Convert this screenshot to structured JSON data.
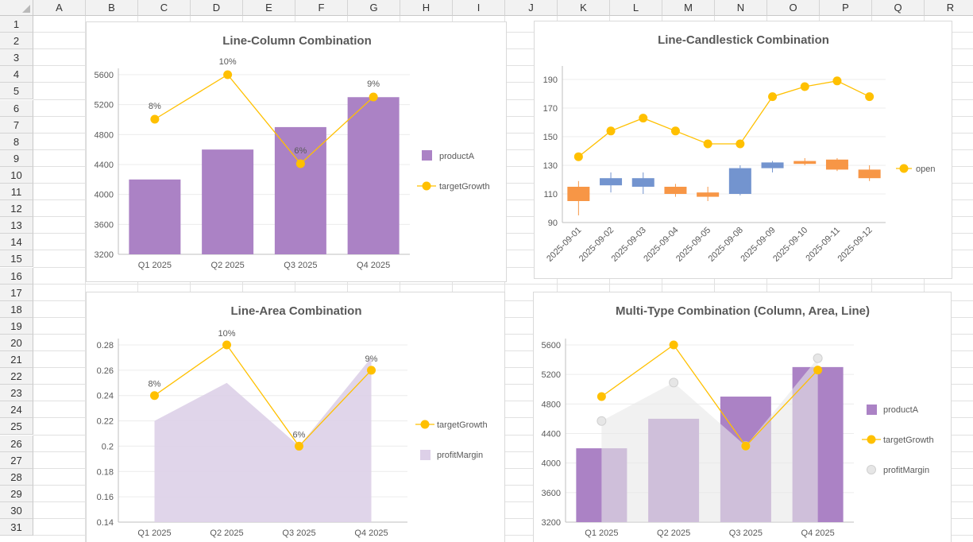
{
  "spreadsheet": {
    "columns": [
      "A",
      "B",
      "C",
      "D",
      "E",
      "F",
      "G",
      "H",
      "I",
      "J",
      "K",
      "L",
      "M",
      "N",
      "O",
      "P",
      "Q",
      "R"
    ],
    "rows": [
      "1",
      "2",
      "3",
      "4",
      "5",
      "6",
      "7",
      "8",
      "9",
      "10",
      "11",
      "12",
      "13",
      "14",
      "15",
      "16",
      "17",
      "18",
      "19",
      "20",
      "21",
      "22",
      "23",
      "24",
      "25",
      "26",
      "27",
      "28",
      "29",
      "30",
      "31"
    ]
  },
  "colors": {
    "productA": "#ab82c5",
    "targetGrowth": "#ffc000",
    "profitMargin_area": "#ddd0e8",
    "profitMargin_multi": "#e8e8e8",
    "candle_up": "#7394cf",
    "candle_down": "#f79646",
    "gridline": "#ececec"
  },
  "chart_data": [
    {
      "id": "line-column",
      "type": "bar",
      "title": "Line-Column Combination",
      "categories": [
        "Q1 2025",
        "Q2 2025",
        "Q3 2025",
        "Q4 2025"
      ],
      "ylim": [
        3200,
        5600
      ],
      "yticks": [
        "3200",
        "3600",
        "4000",
        "4400",
        "4800",
        "5200",
        "5600"
      ],
      "grid": true,
      "legend_position": "right",
      "series": [
        {
          "name": "productA",
          "kind": "column",
          "values": [
            4200,
            4600,
            4900,
            5300
          ]
        },
        {
          "name": "targetGrowth",
          "kind": "line",
          "values": [
            0.08,
            0.1,
            0.06,
            0.09
          ],
          "labels": [
            "8%",
            "10%",
            "6%",
            "9%"
          ]
        }
      ]
    },
    {
      "id": "line-candlestick",
      "type": "line",
      "title": "Line-Candlestick Combination",
      "categories": [
        "2025-09-01",
        "2025-09-02",
        "2025-09-03",
        "2025-09-04",
        "2025-09-05",
        "2025-09-08",
        "2025-09-09",
        "2025-09-10",
        "2025-09-11",
        "2025-09-12"
      ],
      "ylim": [
        90,
        195
      ],
      "yticks": [
        "90",
        "110",
        "130",
        "150",
        "170",
        "190"
      ],
      "grid": true,
      "legend_position": "right",
      "series": [
        {
          "name": "open",
          "kind": "line",
          "values": [
            136,
            154,
            163,
            154,
            145,
            145,
            178,
            185,
            189,
            178
          ]
        },
        {
          "kind": "candlestick",
          "open": [
            115,
            116,
            115,
            115,
            111,
            110,
            128,
            133,
            134,
            127
          ],
          "close": [
            105,
            121,
            121,
            110,
            108,
            128,
            132,
            131,
            127,
            121
          ],
          "high": [
            119,
            125,
            125,
            117,
            115,
            130,
            133,
            135,
            135,
            130
          ],
          "low": [
            95,
            111,
            110,
            108,
            105,
            109,
            125,
            130,
            126,
            119
          ]
        }
      ]
    },
    {
      "id": "line-area",
      "type": "area",
      "title": "Line-Area Combination",
      "categories": [
        "Q1 2025",
        "Q2 2025",
        "Q3 2025",
        "Q4 2025"
      ],
      "ylim": [
        0.14,
        0.28
      ],
      "yticks": [
        "0.14",
        "0.16",
        "0.18",
        "0.2",
        "0.22",
        "0.24",
        "0.26",
        "0.28"
      ],
      "grid": true,
      "legend_position": "right",
      "series": [
        {
          "name": "targetGrowth",
          "kind": "line",
          "values": [
            0.24,
            0.28,
            0.2,
            0.26
          ],
          "labels": [
            "8%",
            "10%",
            "6%",
            "9%"
          ]
        },
        {
          "name": "profitMargin",
          "kind": "area",
          "values": [
            0.22,
            0.25,
            0.2,
            0.27
          ]
        }
      ]
    },
    {
      "id": "multi-type",
      "type": "bar",
      "title": "Multi-Type Combination (Column, Area, Line)",
      "categories": [
        "Q1 2025",
        "Q2 2025",
        "Q3 2025",
        "Q4 2025"
      ],
      "ylim": [
        3200,
        5600
      ],
      "yticks": [
        "3200",
        "3600",
        "4000",
        "4400",
        "4800",
        "5200",
        "5600"
      ],
      "grid": true,
      "legend_position": "right",
      "series": [
        {
          "name": "productA",
          "kind": "column",
          "values": [
            4200,
            4600,
            4900,
            5300
          ]
        },
        {
          "name": "targetGrowth",
          "kind": "line",
          "values": [
            4900,
            5600,
            4230,
            5260
          ]
        },
        {
          "name": "profitMargin",
          "kind": "area",
          "values": [
            4570,
            5090,
            4230,
            5420
          ]
        }
      ]
    }
  ]
}
